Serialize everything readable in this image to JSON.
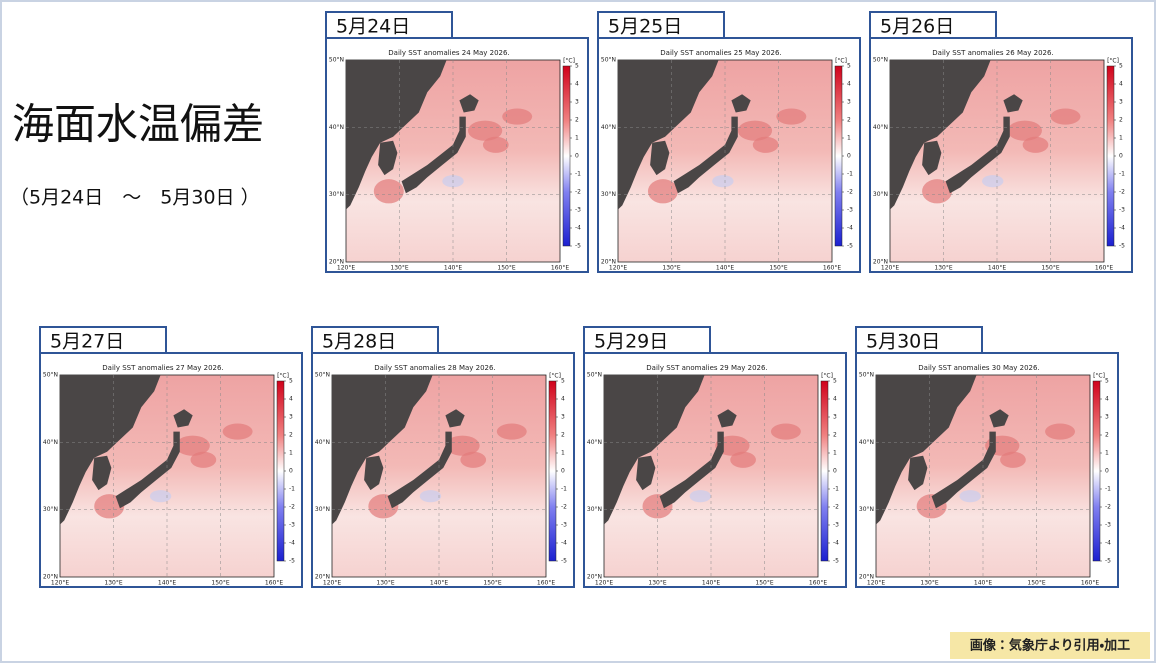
{
  "header": {
    "title": "海面水温偏差",
    "subtitle": "（5月24日　～　5月30日 ）"
  },
  "map": {
    "lat_labels": [
      "50°N",
      "40°N",
      "30°N",
      "20°N"
    ],
    "lon_labels": [
      "120°E",
      "130°E",
      "140°E",
      "150°E",
      "160°E"
    ],
    "colorbar": {
      "unit": "[°C]",
      "ticks": [
        5,
        4,
        3,
        2,
        1,
        0,
        -1,
        -2,
        -3,
        -4,
        -5
      ]
    }
  },
  "panels": [
    {
      "date": "5月24日",
      "map_title": "Daily SST anomalies 24 May 2026."
    },
    {
      "date": "5月25日",
      "map_title": "Daily SST anomalies 25 May 2026."
    },
    {
      "date": "5月26日",
      "map_title": "Daily SST anomalies 26 May 2026."
    },
    {
      "date": "5月27日",
      "map_title": "Daily SST anomalies 27 May 2026."
    },
    {
      "date": "5月28日",
      "map_title": "Daily SST anomalies 28 May 2026."
    },
    {
      "date": "5月29日",
      "map_title": "Daily SST anomalies 29 May 2026."
    },
    {
      "date": "5月30日",
      "map_title": "Daily SST anomalies 30 May 2026."
    }
  ],
  "footer": {
    "credit": "画像：気象庁より引用・加工"
  }
}
